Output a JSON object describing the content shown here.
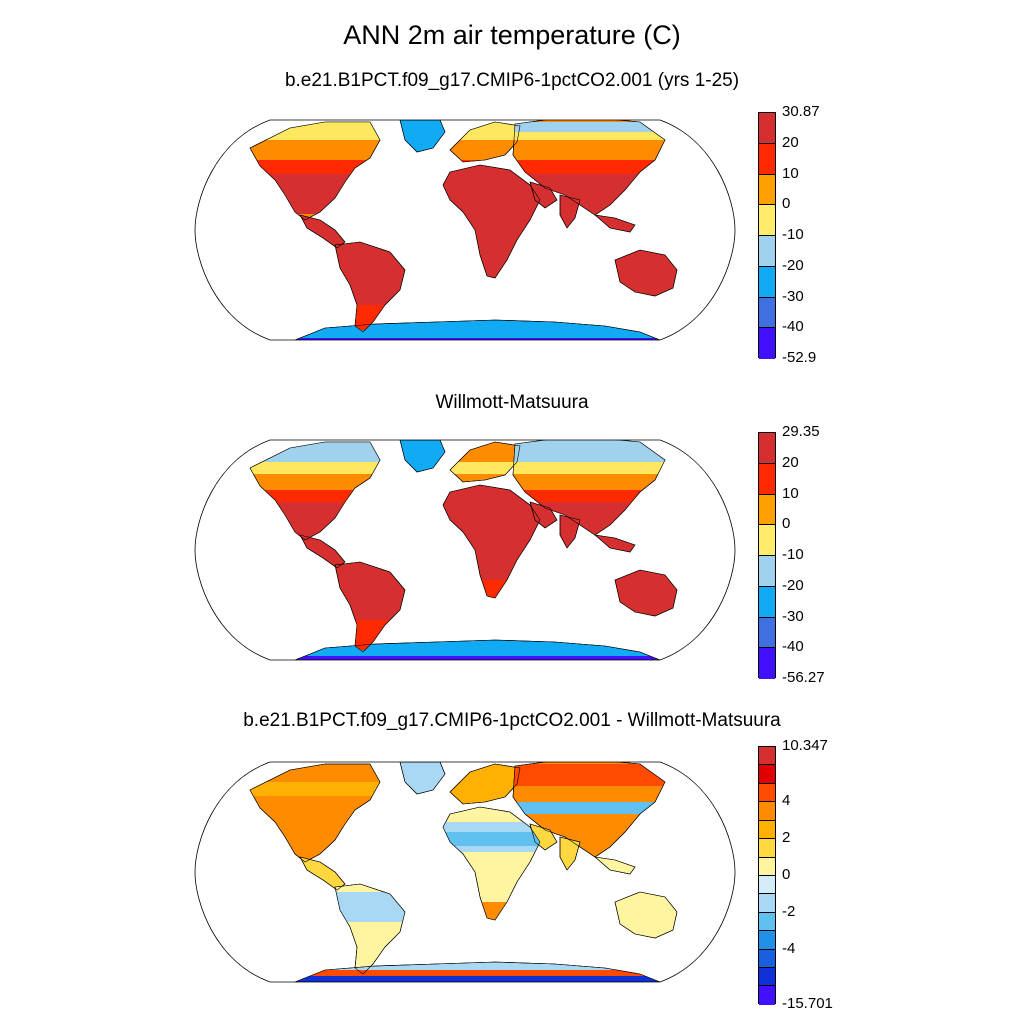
{
  "title": "ANN 2m air temperature (C)",
  "panels": [
    {
      "subtitle": "b.e21.B1PCT.f09_g17.CMIP6-1pctCO2.001 (yrs 1-25)",
      "colorbar": {
        "colors": [
          "#d62f2f",
          "#ff2a00",
          "#ffa000",
          "#ffec6a",
          "#a0d2ee",
          "#10aaf5",
          "#4070e0",
          "#4010ff"
        ],
        "labels": [
          "30.87",
          "20",
          "10",
          "0",
          "-10",
          "-20",
          "-30",
          "-40",
          "-52.9"
        ]
      },
      "map_variant": "model"
    },
    {
      "subtitle": "Willmott-Matsuura",
      "colorbar": {
        "colors": [
          "#d62f2f",
          "#ff2a00",
          "#ffa000",
          "#ffec6a",
          "#a0d2ee",
          "#10aaf5",
          "#4070e0",
          "#4010ff"
        ],
        "labels": [
          "29.35",
          "20",
          "10",
          "0",
          "-10",
          "-20",
          "-30",
          "-40",
          "-56.27"
        ]
      },
      "map_variant": "obs"
    },
    {
      "subtitle": "b.e21.B1PCT.f09_g17.CMIP6-1pctCO2.001 - Willmott-Matsuura",
      "colorbar": {
        "colors": [
          "#d62f2f",
          "#e00000",
          "#ff4a00",
          "#ff8c00",
          "#ffb000",
          "#ffd840",
          "#fff4a0",
          "#d4ecf8",
          "#a8d8f4",
          "#60c0f0",
          "#2090e8",
          "#1860e0",
          "#1030d8",
          "#4010ff"
        ],
        "labels": [
          "10.347",
          "",
          "",
          "4",
          "",
          "2",
          "",
          "0",
          "",
          "-2",
          "",
          "-4",
          "",
          "",
          "-15.701"
        ]
      },
      "map_variant": "diff"
    }
  ]
}
